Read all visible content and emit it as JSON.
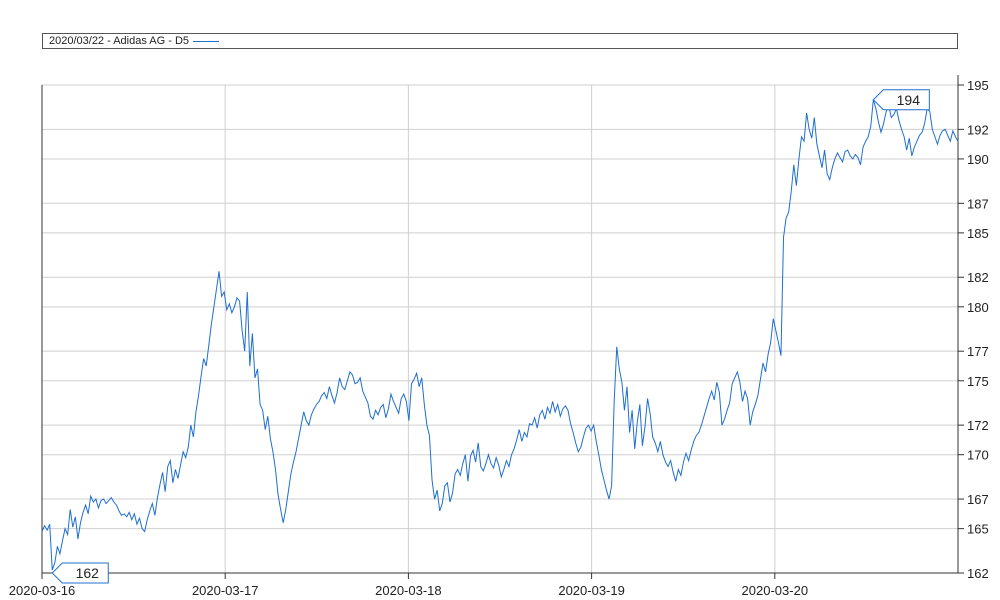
{
  "legend": {
    "label": "2020/03/22 - Adidas AG - D5",
    "color": "#1f6fd0"
  },
  "chart_data": {
    "type": "line",
    "title": "",
    "xlabel": "",
    "ylabel": "",
    "ylim": [
      162,
      195
    ],
    "y_ticks": [
      162,
      165,
      167,
      170,
      172,
      175,
      177,
      180,
      182,
      185,
      187,
      190,
      192,
      195
    ],
    "y_axis_position": "right",
    "x_tick_labels": [
      "2020-03-16",
      "2020-03-17",
      "2020-03-18",
      "2020-03-19",
      "2020-03-20"
    ],
    "x_tick_index": [
      0,
      100,
      200,
      300,
      400
    ],
    "x_range_index": [
      0,
      500
    ],
    "grid": true,
    "legend_position": "top",
    "series": [
      {
        "name": "2020/03/22 - Adidas AG - D5",
        "color": "#1f6fd0",
        "values": [
          164.8,
          165.2,
          164.9,
          165.3,
          162.2,
          162.7,
          163.8,
          163.3,
          164.2,
          165.0,
          164.6,
          166.3,
          165.1,
          165.8,
          164.3,
          165.4,
          166.1,
          166.6,
          166.0,
          167.2,
          166.8,
          167.0,
          166.4,
          166.9,
          167.0,
          166.7,
          166.9,
          167.1,
          166.8,
          166.6,
          166.2,
          165.9,
          166.0,
          165.8,
          166.1,
          165.6,
          166.0,
          165.3,
          165.7,
          165.0,
          164.8,
          165.6,
          166.2,
          166.7,
          165.9,
          167.1,
          168.0,
          168.8,
          167.5,
          169.2,
          169.6,
          168.1,
          169.0,
          168.4,
          169.3,
          170.2,
          169.8,
          170.5,
          172.0,
          171.2,
          172.9,
          174.0,
          175.3,
          176.5,
          176.0,
          177.4,
          178.8,
          180.0,
          181.2,
          182.4,
          180.7,
          181.0,
          179.8,
          180.2,
          179.6,
          180.0,
          180.6,
          180.4,
          178.4,
          177.0,
          181.0,
          176.0,
          178.2,
          175.2,
          175.8,
          173.4,
          173.0,
          171.7,
          172.6,
          171.1,
          170.2,
          169.0,
          167.3,
          166.3,
          165.4,
          166.3,
          167.5,
          168.7,
          169.5,
          170.2,
          171.1,
          172.0,
          172.9,
          172.3,
          172.0,
          172.7,
          173.1,
          173.4,
          173.6,
          174.0,
          174.2,
          173.8,
          174.6,
          174.0,
          173.5,
          174.2,
          175.2,
          174.6,
          174.4,
          175.0,
          175.6,
          175.4,
          174.8,
          174.9,
          175.2,
          174.3,
          173.9,
          173.5,
          172.6,
          172.4,
          173.0,
          172.7,
          173.2,
          173.4,
          172.5,
          173.1,
          174.1,
          173.6,
          173.2,
          172.8,
          173.8,
          174.1,
          173.6,
          172.3,
          174.8,
          175.1,
          175.5,
          174.6,
          175.2,
          173.4,
          172.0,
          171.3,
          168.3,
          167.0,
          167.6,
          166.2,
          166.7,
          167.9,
          168.1,
          166.8,
          167.4,
          168.7,
          169.0,
          168.6,
          169.4,
          170.0,
          168.2,
          169.9,
          170.3,
          169.5,
          170.8,
          169.2,
          168.9,
          169.4,
          170.0,
          169.4,
          169.1,
          169.8,
          169.3,
          168.5,
          169.0,
          169.6,
          169.2,
          170.0,
          170.4,
          171.0,
          171.7,
          170.9,
          171.5,
          171.2,
          172.1,
          172.0,
          172.5,
          171.8,
          172.7,
          173.0,
          172.4,
          173.2,
          172.8,
          173.6,
          172.9,
          173.4,
          172.6,
          173.1,
          173.3,
          173.0,
          172.1,
          171.5,
          170.8,
          170.2,
          170.5,
          171.2,
          171.8,
          172.0,
          171.6,
          172.0,
          170.9,
          170.0,
          169.0,
          168.3,
          167.6,
          167.0,
          167.9,
          173.6,
          177.3,
          175.8,
          174.9,
          173.0,
          174.6,
          171.5,
          173.0,
          170.4,
          172.2,
          173.4,
          170.6,
          171.9,
          173.8,
          172.8,
          171.2,
          170.8,
          170.2,
          170.9,
          170.0,
          169.5,
          169.2,
          169.6,
          168.8,
          168.2,
          169.0,
          168.6,
          169.5,
          170.1,
          169.6,
          170.3,
          170.9,
          171.3,
          171.5,
          172.0,
          172.6,
          173.2,
          173.8,
          174.3,
          173.7,
          174.9,
          174.2,
          172.0,
          172.4,
          173.0,
          173.5,
          174.8,
          175.2,
          175.6,
          174.9,
          173.6,
          174.3,
          173.8,
          172.0,
          172.9,
          173.4,
          174.0,
          175.1,
          176.2,
          175.6,
          176.8,
          177.6,
          179.2,
          178.4,
          177.6,
          176.7,
          184.7,
          186.0,
          186.4,
          187.8,
          189.6,
          188.2,
          190.0,
          191.5,
          191.2,
          193.1,
          192.0,
          191.4,
          192.8,
          191.0,
          190.2,
          189.4,
          190.6,
          189.0,
          188.6,
          189.4,
          190.0,
          190.4,
          190.1,
          189.8,
          190.5,
          190.6,
          190.2,
          190.0,
          190.3,
          190.1,
          189.6,
          190.8,
          191.2,
          191.5,
          192.2,
          194.0,
          193.4,
          192.5,
          191.8,
          192.4,
          193.2,
          193.6,
          192.8,
          193.0,
          193.4,
          192.6,
          192.0,
          191.5,
          190.6,
          191.4,
          190.2,
          190.8,
          191.2,
          191.6,
          191.8,
          192.4,
          193.4,
          193.2,
          192.0,
          191.5,
          191.0,
          191.6,
          191.9,
          192.0,
          191.6,
          191.2,
          191.9,
          191.5,
          191.2
        ]
      }
    ],
    "annotations": [
      {
        "text": "194",
        "kind": "max",
        "value": 194
      },
      {
        "text": "162",
        "kind": "min",
        "value": 162
      }
    ]
  }
}
